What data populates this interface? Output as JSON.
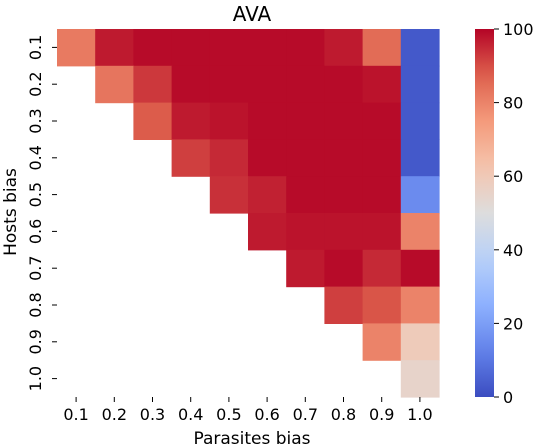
{
  "chart_data": {
    "type": "heatmap",
    "title": "AVA",
    "xlabel": "Parasites bias",
    "ylabel": "Hosts bias",
    "x_categories": [
      "0.1",
      "0.2",
      "0.3",
      "0.4",
      "0.5",
      "0.6",
      "0.7",
      "0.8",
      "0.9",
      "1.0"
    ],
    "y_categories": [
      "0.1",
      "0.2",
      "0.3",
      "0.4",
      "0.5",
      "0.6",
      "0.7",
      "0.8",
      "0.9",
      "1.0"
    ],
    "values": [
      [
        82,
        97,
        99,
        99,
        99,
        99,
        99,
        97,
        85,
        3
      ],
      [
        null,
        83,
        93,
        99,
        99,
        99,
        99,
        99,
        98,
        3
      ],
      [
        null,
        null,
        88,
        97,
        98,
        99,
        99,
        99,
        99,
        3
      ],
      [
        null,
        null,
        null,
        92,
        95,
        99,
        99,
        99,
        99,
        3
      ],
      [
        null,
        null,
        null,
        null,
        94,
        96,
        99,
        99,
        99,
        15
      ],
      [
        null,
        null,
        null,
        null,
        null,
        97,
        98,
        98,
        98,
        80
      ],
      [
        null,
        null,
        null,
        null,
        null,
        null,
        97,
        99,
        95,
        99
      ],
      [
        null,
        null,
        null,
        null,
        null,
        null,
        null,
        92,
        89,
        80
      ],
      [
        null,
        null,
        null,
        null,
        null,
        null,
        null,
        null,
        80,
        59
      ],
      [
        null,
        null,
        null,
        null,
        null,
        null,
        null,
        null,
        null,
        55
      ]
    ],
    "colormap": "coolwarm",
    "vmin": 0,
    "vmax": 100,
    "colorbar_ticks": [
      0,
      20,
      40,
      60,
      80,
      100
    ],
    "grid": false,
    "colorbar_position": "right"
  }
}
